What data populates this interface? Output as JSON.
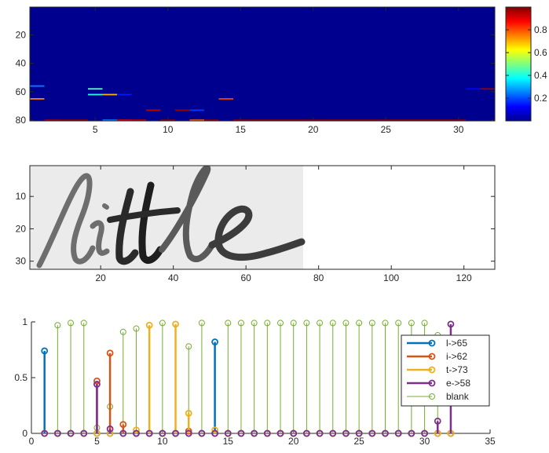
{
  "chart_data": [
    {
      "type": "heatmap",
      "title": "",
      "xlabel": "",
      "ylabel": "",
      "xlim": [
        0.5,
        32.5
      ],
      "ylim": [
        0.5,
        80.5
      ],
      "y_direction": "reversed",
      "x_ticks": [
        "5",
        "10",
        "15",
        "20",
        "25",
        "30"
      ],
      "y_ticks": [
        "20",
        "40",
        "60",
        "80"
      ],
      "colormap": "jet",
      "colorbar": {
        "range": [
          0,
          1
        ],
        "ticks": [
          "0.2",
          "0.4",
          "0.6",
          "0.8"
        ],
        "placement": "right"
      },
      "background_value": 0,
      "highlighted_cells": [
        {
          "x": 1,
          "y": 56,
          "value": 0.25
        },
        {
          "x": 1,
          "y": 65,
          "value": 0.75
        },
        {
          "x": 5,
          "y": 58,
          "value": 0.45
        },
        {
          "x": 5,
          "y": 62,
          "value": 0.4
        },
        {
          "x": 6,
          "y": 62,
          "value": 0.7
        },
        {
          "x": 6,
          "y": 80,
          "value": 0.25
        },
        {
          "x": 7,
          "y": 62,
          "value": 0.15
        },
        {
          "x": 9,
          "y": 73,
          "value": 0.95
        },
        {
          "x": 11,
          "y": 73,
          "value": 0.98
        },
        {
          "x": 12,
          "y": 73,
          "value": 0.18
        },
        {
          "x": 12,
          "y": 80,
          "value": 0.78
        },
        {
          "x": 14,
          "y": 65,
          "value": 0.82
        },
        {
          "x": 31,
          "y": 58,
          "value": 0.12
        },
        {
          "x": 32,
          "y": 58,
          "value": 0.98
        },
        {
          "x": 2,
          "y": 80,
          "value": 0.97
        },
        {
          "x": 3,
          "y": 80,
          "value": 0.99
        },
        {
          "x": 4,
          "y": 80,
          "value": 0.99
        },
        {
          "x": 7,
          "y": 80,
          "value": 0.91
        },
        {
          "x": 8,
          "y": 80,
          "value": 0.94
        },
        {
          "x": 10,
          "y": 80,
          "value": 0.99
        },
        {
          "x": 13,
          "y": 80,
          "value": 0.99
        },
        {
          "x": 15,
          "y": 80,
          "value": 0.99
        },
        {
          "x": 16,
          "y": 80,
          "value": 0.99
        },
        {
          "x": 17,
          "y": 80,
          "value": 0.99
        },
        {
          "x": 18,
          "y": 80,
          "value": 0.99
        },
        {
          "x": 19,
          "y": 80,
          "value": 0.99
        },
        {
          "x": 20,
          "y": 80,
          "value": 0.99
        },
        {
          "x": 21,
          "y": 80,
          "value": 0.99
        },
        {
          "x": 22,
          "y": 80,
          "value": 0.99
        },
        {
          "x": 23,
          "y": 80,
          "value": 0.99
        },
        {
          "x": 24,
          "y": 80,
          "value": 0.99
        },
        {
          "x": 25,
          "y": 80,
          "value": 0.99
        },
        {
          "x": 26,
          "y": 80,
          "value": 0.99
        },
        {
          "x": 27,
          "y": 80,
          "value": 0.99
        },
        {
          "x": 28,
          "y": 80,
          "value": 0.99
        },
        {
          "x": 29,
          "y": 80,
          "value": 0.99
        },
        {
          "x": 30,
          "y": 80,
          "value": 0.99
        }
      ]
    },
    {
      "type": "image",
      "title": "",
      "xlabel": "",
      "ylabel": "",
      "xlim": [
        0.5,
        128.5
      ],
      "ylim": [
        0.5,
        32.5
      ],
      "y_direction": "reversed",
      "x_ticks": [
        "20",
        "40",
        "60",
        "80",
        "100",
        "120"
      ],
      "y_ticks": [
        "10",
        "20",
        "30"
      ],
      "content": "little",
      "content_extent_x": [
        1,
        75
      ]
    },
    {
      "type": "stem",
      "title": "",
      "xlabel": "",
      "ylabel": "",
      "xlim": [
        0,
        35
      ],
      "ylim": [
        0,
        1
      ],
      "x_ticks": [
        "0",
        "5",
        "10",
        "15",
        "20",
        "25",
        "30",
        "35"
      ],
      "y_ticks": [
        "0",
        "0.5",
        "1"
      ],
      "x": [
        1,
        2,
        3,
        4,
        5,
        6,
        7,
        8,
        9,
        10,
        11,
        12,
        13,
        14,
        15,
        16,
        17,
        18,
        19,
        20,
        21,
        22,
        23,
        24,
        25,
        26,
        27,
        28,
        29,
        30,
        31,
        32
      ],
      "legend_position": "right",
      "series": [
        {
          "name": "l->65",
          "color": "#0072BD",
          "line_width": 2.5,
          "values": [
            0.74,
            0,
            0,
            0,
            0,
            0,
            0,
            0,
            0,
            0,
            0,
            0,
            0,
            0.82,
            0,
            0,
            0,
            0,
            0,
            0,
            0,
            0,
            0,
            0,
            0,
            0,
            0,
            0,
            0,
            0,
            0,
            0
          ]
        },
        {
          "name": "i->62",
          "color": "#D95319",
          "line_width": 2.5,
          "values": [
            0,
            0,
            0,
            0,
            0.47,
            0.72,
            0.08,
            0,
            0,
            0,
            0,
            0.02,
            0,
            0,
            0,
            0,
            0,
            0,
            0,
            0,
            0,
            0,
            0,
            0,
            0,
            0,
            0,
            0,
            0,
            0,
            0,
            0
          ]
        },
        {
          "name": "t->73",
          "color": "#EDB120",
          "line_width": 2.5,
          "values": [
            0,
            0,
            0,
            0,
            0,
            0,
            0,
            0.03,
            0.97,
            0,
            0.98,
            0.18,
            0,
            0.03,
            0,
            0,
            0,
            0,
            0,
            0,
            0,
            0,
            0,
            0,
            0,
            0,
            0,
            0,
            0,
            0,
            0,
            0
          ]
        },
        {
          "name": "e->58",
          "color": "#7E2F8E",
          "line_width": 2.5,
          "values": [
            0,
            0,
            0,
            0,
            0.44,
            0.04,
            0,
            0,
            0,
            0,
            0,
            0,
            0,
            0,
            0,
            0,
            0,
            0,
            0,
            0,
            0,
            0,
            0,
            0,
            0,
            0,
            0,
            0,
            0,
            0,
            0.11,
            0.98
          ]
        },
        {
          "name": "blank",
          "color": "#77AC30",
          "line_width": 1,
          "values": [
            0,
            0.97,
            0.99,
            0.99,
            0.05,
            0.24,
            0.91,
            0.94,
            0,
            0.99,
            0,
            0.78,
            0.99,
            0,
            0.99,
            0.99,
            0.99,
            0.99,
            0.99,
            0.99,
            0.99,
            0.99,
            0.99,
            0.99,
            0.99,
            0.99,
            0.99,
            0.99,
            0.99,
            0.99,
            0.88,
            0
          ]
        }
      ]
    }
  ]
}
